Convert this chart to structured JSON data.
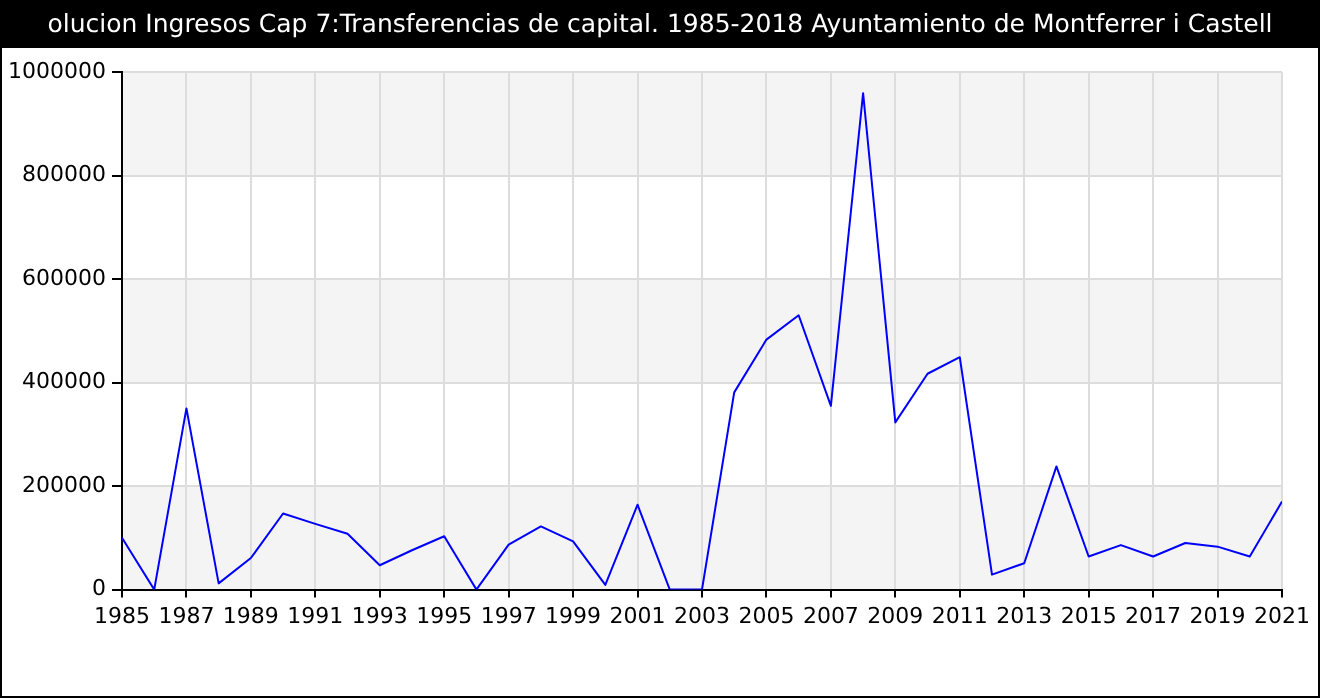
{
  "chart_data": {
    "type": "line",
    "title": "olucion Ingresos Cap 7:Transferencias de capital. 1985-2018 Ayuntamiento de Montferrer i Castell",
    "x": [
      1985,
      1986,
      1987,
      1988,
      1989,
      1990,
      1991,
      1992,
      1993,
      1994,
      1995,
      1996,
      1997,
      1998,
      1999,
      2000,
      2001,
      2002,
      2003,
      2004,
      2005,
      2006,
      2007,
      2008,
      2009,
      2010,
      2011,
      2012,
      2013,
      2014,
      2015,
      2016,
      2017,
      2018,
      2019,
      2020,
      2021
    ],
    "series": [
      {
        "color": "#0000ff",
        "values": [
          100000,
          0,
          350000,
          12000,
          61000,
          147000,
          127000,
          108000,
          47000,
          76000,
          103000,
          0,
          87000,
          122000,
          93000,
          9000,
          164000,
          0,
          0,
          381000,
          483000,
          530000,
          355000,
          959000,
          323000,
          417000,
          449000,
          29000,
          51000,
          238000,
          64000,
          86000,
          64000,
          90000,
          83000,
          64000,
          170000
        ]
      }
    ],
    "xlim": [
      1985,
      2021
    ],
    "xticks": [
      1985,
      1987,
      1989,
      1991,
      1993,
      1995,
      1997,
      1999,
      2001,
      2003,
      2005,
      2007,
      2009,
      2011,
      2013,
      2015,
      2017,
      2019,
      2021
    ],
    "ylim": [
      0,
      1000000
    ],
    "yticks": [
      0,
      200000,
      400000,
      600000,
      800000,
      1000000
    ],
    "grid": true,
    "legend": false,
    "marker": "none",
    "line_style": "solid"
  }
}
